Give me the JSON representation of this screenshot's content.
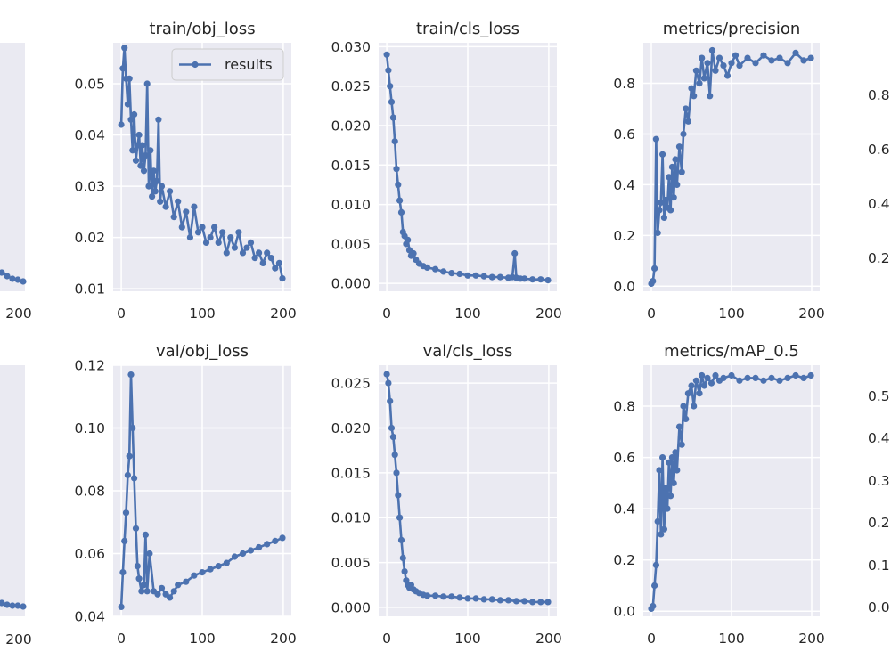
{
  "figure": {
    "series_color": "#4c72b0",
    "panel_color": "#eaeaf2",
    "grid_color": "#ffffff",
    "legend_label": "results",
    "x_ticks": [
      0,
      100,
      200
    ],
    "edge_ticks": {
      "left_top_x": "200",
      "left_bottom_x": "200",
      "right_top_y": [
        "0.8",
        "0.6",
        "0.4",
        "0.2"
      ],
      "right_bottom_y": [
        "0.5",
        "0.4",
        "0.3",
        "0.2",
        "0.1",
        "0.0"
      ]
    }
  },
  "chart_data": [
    {
      "type": "line",
      "title": "train/obj_loss",
      "xlim": [
        -10,
        210
      ],
      "ylim": [
        0.0095,
        0.058
      ],
      "y_ticks": [
        0.01,
        0.02,
        0.03,
        0.04,
        0.05
      ],
      "y_tick_labels": [
        "0.01",
        "0.02",
        "0.03",
        "0.04",
        "0.05"
      ],
      "legend": "results",
      "x": [
        0,
        2,
        4,
        6,
        8,
        10,
        12,
        14,
        16,
        18,
        20,
        22,
        24,
        26,
        28,
        30,
        32,
        34,
        36,
        38,
        40,
        42,
        44,
        46,
        48,
        50,
        55,
        60,
        65,
        70,
        75,
        80,
        85,
        90,
        95,
        100,
        105,
        110,
        115,
        120,
        125,
        130,
        135,
        140,
        145,
        150,
        155,
        160,
        165,
        170,
        175,
        180,
        185,
        190,
        195,
        199
      ],
      "y": [
        0.042,
        0.053,
        0.057,
        0.051,
        0.046,
        0.051,
        0.043,
        0.037,
        0.044,
        0.035,
        0.038,
        0.04,
        0.034,
        0.038,
        0.033,
        0.036,
        0.05,
        0.03,
        0.037,
        0.028,
        0.033,
        0.029,
        0.031,
        0.043,
        0.027,
        0.03,
        0.026,
        0.029,
        0.024,
        0.027,
        0.022,
        0.025,
        0.02,
        0.026,
        0.021,
        0.022,
        0.019,
        0.02,
        0.022,
        0.019,
        0.021,
        0.017,
        0.02,
        0.018,
        0.021,
        0.017,
        0.018,
        0.019,
        0.016,
        0.017,
        0.015,
        0.017,
        0.016,
        0.014,
        0.015,
        0.012
      ]
    },
    {
      "type": "line",
      "title": "train/cls_loss",
      "xlim": [
        -10,
        210
      ],
      "ylim": [
        -0.001,
        0.0305
      ],
      "y_ticks": [
        0,
        0.005,
        0.01,
        0.015,
        0.02,
        0.025,
        0.03
      ],
      "y_tick_labels": [
        "0.000",
        "0.005",
        "0.010",
        "0.015",
        "0.020",
        "0.025",
        "0.030"
      ],
      "x": [
        0,
        2,
        4,
        6,
        8,
        10,
        12,
        14,
        16,
        18,
        20,
        22,
        24,
        26,
        28,
        30,
        33,
        36,
        40,
        45,
        50,
        60,
        70,
        80,
        90,
        100,
        110,
        120,
        130,
        140,
        150,
        155,
        158,
        160,
        165,
        170,
        180,
        190,
        199
      ],
      "y": [
        0.029,
        0.027,
        0.025,
        0.023,
        0.021,
        0.018,
        0.0145,
        0.0125,
        0.0105,
        0.009,
        0.0065,
        0.006,
        0.005,
        0.0055,
        0.0042,
        0.0035,
        0.0038,
        0.003,
        0.0025,
        0.0022,
        0.002,
        0.0018,
        0.0015,
        0.0013,
        0.0012,
        0.001,
        0.001,
        0.0009,
        0.0008,
        0.0008,
        0.0007,
        0.0008,
        0.0038,
        0.0007,
        0.0006,
        0.0006,
        0.0005,
        0.0005,
        0.0004
      ]
    },
    {
      "type": "line",
      "title": "metrics/precision",
      "xlim": [
        -10,
        210
      ],
      "ylim": [
        -0.02,
        0.96
      ],
      "y_ticks": [
        0,
        0.2,
        0.4,
        0.6,
        0.8
      ],
      "y_tick_labels": [
        "0.0",
        "0.2",
        "0.4",
        "0.6",
        "0.8"
      ],
      "x": [
        0,
        2,
        4,
        6,
        8,
        10,
        12,
        14,
        16,
        18,
        20,
        22,
        24,
        26,
        28,
        30,
        32,
        35,
        38,
        40,
        43,
        46,
        50,
        53,
        56,
        60,
        63,
        66,
        70,
        73,
        76,
        80,
        85,
        90,
        95,
        100,
        105,
        110,
        120,
        130,
        140,
        150,
        160,
        170,
        180,
        190,
        199
      ],
      "y": [
        0.01,
        0.02,
        0.07,
        0.58,
        0.21,
        0.3,
        0.33,
        0.52,
        0.27,
        0.34,
        0.31,
        0.43,
        0.3,
        0.47,
        0.35,
        0.5,
        0.4,
        0.55,
        0.45,
        0.6,
        0.7,
        0.65,
        0.78,
        0.75,
        0.85,
        0.8,
        0.9,
        0.82,
        0.88,
        0.75,
        0.93,
        0.85,
        0.9,
        0.87,
        0.83,
        0.88,
        0.91,
        0.87,
        0.9,
        0.88,
        0.91,
        0.89,
        0.9,
        0.88,
        0.92,
        0.89,
        0.9
      ]
    },
    {
      "type": "line",
      "title": "val/obj_loss",
      "xlim": [
        -10,
        210
      ],
      "ylim": [
        0.04,
        0.12
      ],
      "y_ticks": [
        0.04,
        0.06,
        0.08,
        0.1,
        0.12
      ],
      "y_tick_labels": [
        "0.04",
        "0.06",
        "0.08",
        "0.10",
        "0.12"
      ],
      "x": [
        0,
        2,
        4,
        6,
        8,
        10,
        12,
        14,
        16,
        18,
        20,
        22,
        25,
        28,
        30,
        32,
        35,
        40,
        45,
        50,
        55,
        60,
        65,
        70,
        80,
        90,
        100,
        110,
        120,
        130,
        140,
        150,
        160,
        170,
        180,
        190,
        199
      ],
      "y": [
        0.043,
        0.054,
        0.064,
        0.073,
        0.085,
        0.091,
        0.117,
        0.1,
        0.084,
        0.068,
        0.056,
        0.052,
        0.048,
        0.05,
        0.066,
        0.048,
        0.06,
        0.048,
        0.047,
        0.049,
        0.047,
        0.046,
        0.048,
        0.05,
        0.051,
        0.053,
        0.054,
        0.055,
        0.056,
        0.057,
        0.059,
        0.06,
        0.061,
        0.062,
        0.063,
        0.064,
        0.065
      ]
    },
    {
      "type": "line",
      "title": "val/cls_loss",
      "xlim": [
        -10,
        210
      ],
      "ylim": [
        -0.001,
        0.027
      ],
      "y_ticks": [
        0,
        0.005,
        0.01,
        0.015,
        0.02,
        0.025
      ],
      "y_tick_labels": [
        "0.000",
        "0.005",
        "0.010",
        "0.015",
        "0.020",
        "0.025"
      ],
      "x": [
        0,
        2,
        4,
        6,
        8,
        10,
        12,
        14,
        16,
        18,
        20,
        22,
        24,
        26,
        28,
        30,
        33,
        36,
        40,
        45,
        50,
        60,
        70,
        80,
        90,
        100,
        110,
        120,
        130,
        140,
        150,
        160,
        170,
        180,
        190,
        199
      ],
      "y": [
        0.026,
        0.025,
        0.023,
        0.02,
        0.019,
        0.017,
        0.015,
        0.0125,
        0.01,
        0.0075,
        0.0055,
        0.004,
        0.003,
        0.0025,
        0.0022,
        0.0025,
        0.002,
        0.0018,
        0.0016,
        0.0014,
        0.0013,
        0.0013,
        0.0012,
        0.0012,
        0.0011,
        0.001,
        0.001,
        0.0009,
        0.0009,
        0.0008,
        0.0008,
        0.0007,
        0.0007,
        0.0006,
        0.0006,
        0.0006
      ]
    },
    {
      "type": "line",
      "title": "metrics/mAP_0.5",
      "xlim": [
        -10,
        210
      ],
      "ylim": [
        -0.02,
        0.96
      ],
      "y_ticks": [
        0,
        0.2,
        0.4,
        0.6,
        0.8
      ],
      "y_tick_labels": [
        "0.0",
        "0.2",
        "0.4",
        "0.6",
        "0.8"
      ],
      "x": [
        0,
        2,
        4,
        6,
        8,
        10,
        12,
        14,
        16,
        18,
        20,
        22,
        24,
        26,
        28,
        30,
        32,
        35,
        38,
        40,
        43,
        46,
        50,
        53,
        56,
        60,
        63,
        66,
        70,
        75,
        80,
        85,
        90,
        100,
        110,
        120,
        130,
        140,
        150,
        160,
        170,
        180,
        190,
        199
      ],
      "y": [
        0.01,
        0.02,
        0.1,
        0.18,
        0.35,
        0.55,
        0.3,
        0.6,
        0.32,
        0.48,
        0.4,
        0.58,
        0.45,
        0.6,
        0.5,
        0.62,
        0.55,
        0.72,
        0.65,
        0.8,
        0.75,
        0.85,
        0.88,
        0.8,
        0.9,
        0.85,
        0.92,
        0.88,
        0.91,
        0.89,
        0.92,
        0.9,
        0.91,
        0.92,
        0.9,
        0.91,
        0.91,
        0.9,
        0.91,
        0.9,
        0.91,
        0.92,
        0.91,
        0.92
      ]
    }
  ]
}
